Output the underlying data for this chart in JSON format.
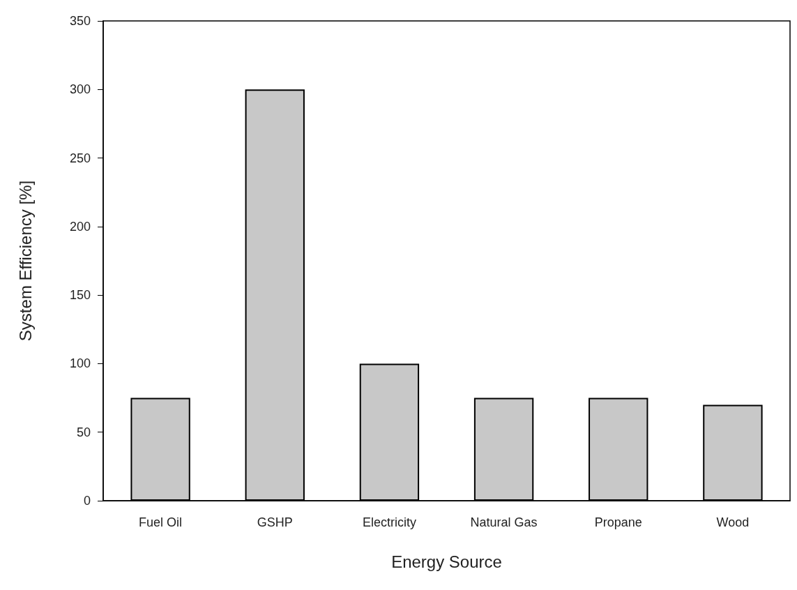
{
  "chart_data": {
    "type": "bar",
    "xlabel": "Energy Source",
    "ylabel": "System Efficiency [%]",
    "categories": [
      "Fuel Oil",
      "GSHP",
      "Electricity",
      "Natural Gas",
      "Propane",
      "Wood"
    ],
    "values": [
      75,
      300,
      100,
      75,
      75,
      70
    ],
    "color": "#c8c8c8",
    "ylim": [
      0,
      350
    ],
    "yticks": [
      0,
      50,
      100,
      150,
      200,
      250,
      300,
      350
    ],
    "grid": false
  }
}
